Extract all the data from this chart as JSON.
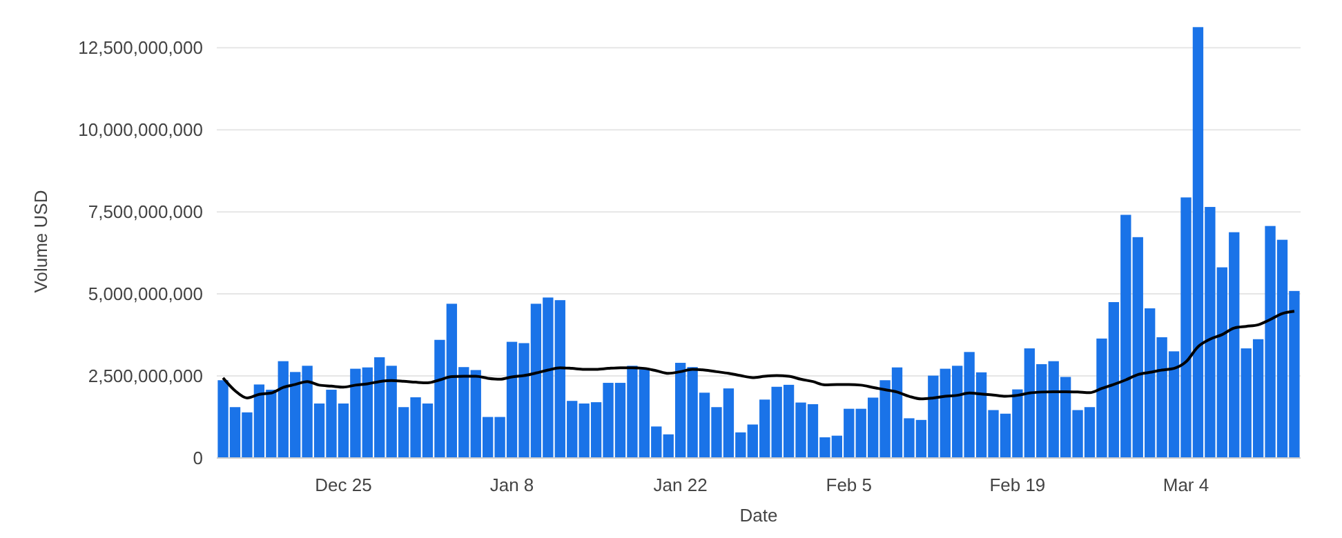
{
  "chart_data": {
    "type": "bar",
    "xlabel": "Date",
    "ylabel": "Volume USD",
    "categories": [
      null,
      null,
      null,
      null,
      null,
      null,
      null,
      null,
      null,
      null,
      "Dec 25",
      null,
      null,
      null,
      null,
      null,
      null,
      null,
      null,
      null,
      null,
      null,
      null,
      null,
      "Jan 8",
      null,
      null,
      null,
      null,
      null,
      null,
      null,
      null,
      null,
      null,
      null,
      null,
      null,
      "Jan 22",
      null,
      null,
      null,
      null,
      null,
      null,
      null,
      null,
      null,
      null,
      null,
      null,
      null,
      "Feb 5",
      null,
      null,
      null,
      null,
      null,
      null,
      null,
      null,
      null,
      null,
      null,
      null,
      null,
      "Feb 19",
      null,
      null,
      null,
      null,
      null,
      null,
      null,
      null,
      null,
      null,
      null,
      null,
      null,
      "Mar 4",
      null,
      null,
      null,
      null,
      null,
      null,
      null,
      null,
      null
    ],
    "series": [
      {
        "color": "#1a73e8",
        "values": [
          2370000000,
          1550000000,
          1390000000,
          2240000000,
          2080000000,
          2950000000,
          2620000000,
          2810000000,
          1660000000,
          2080000000,
          1660000000,
          2720000000,
          2760000000,
          3070000000,
          2810000000,
          1550000000,
          1850000000,
          1660000000,
          3600000000,
          4700000000,
          2770000000,
          2680000000,
          1250000000,
          1250000000,
          3540000000,
          3500000000,
          4700000000,
          4890000000,
          4810000000,
          1740000000,
          1660000000,
          1700000000,
          2290000000,
          2290000000,
          2810000000,
          2700000000,
          960000000,
          720000000,
          2900000000,
          2770000000,
          1990000000,
          1550000000,
          2120000000,
          780000000,
          1020000000,
          1780000000,
          2170000000,
          2230000000,
          1690000000,
          1640000000,
          630000000,
          680000000,
          1500000000,
          1500000000,
          1840000000,
          2370000000,
          2760000000,
          1210000000,
          1160000000,
          2510000000,
          2720000000,
          2810000000,
          3230000000,
          2610000000,
          1460000000,
          1350000000,
          2090000000,
          3340000000,
          2860000000,
          2950000000,
          2470000000,
          1460000000,
          1550000000,
          3640000000,
          4750000000,
          7410000000,
          6730000000,
          4560000000,
          3680000000,
          3250000000,
          7940000000,
          13130000000,
          7650000000,
          5810000000,
          6880000000,
          3340000000,
          3620000000,
          7070000000,
          6650000000,
          5090000000
        ]
      },
      {
        "type": "line",
        "color": "#000000",
        "values": [
          2440000000,
          2050000000,
          1830000000,
          1940000000,
          1980000000,
          2150000000,
          2240000000,
          2330000000,
          2220000000,
          2190000000,
          2160000000,
          2220000000,
          2260000000,
          2330000000,
          2360000000,
          2340000000,
          2310000000,
          2290000000,
          2380000000,
          2480000000,
          2490000000,
          2490000000,
          2430000000,
          2400000000,
          2470000000,
          2510000000,
          2590000000,
          2680000000,
          2750000000,
          2730000000,
          2700000000,
          2700000000,
          2730000000,
          2750000000,
          2750000000,
          2730000000,
          2660000000,
          2580000000,
          2630000000,
          2700000000,
          2680000000,
          2630000000,
          2580000000,
          2510000000,
          2450000000,
          2490000000,
          2510000000,
          2490000000,
          2400000000,
          2330000000,
          2230000000,
          2240000000,
          2240000000,
          2220000000,
          2150000000,
          2080000000,
          2010000000,
          1880000000,
          1800000000,
          1830000000,
          1880000000,
          1910000000,
          1980000000,
          1950000000,
          1920000000,
          1880000000,
          1910000000,
          1980000000,
          2010000000,
          2020000000,
          2020000000,
          2010000000,
          1990000000,
          2120000000,
          2240000000,
          2380000000,
          2540000000,
          2610000000,
          2680000000,
          2730000000,
          2930000000,
          3390000000,
          3620000000,
          3760000000,
          3960000000,
          4010000000,
          4060000000,
          4220000000,
          4400000000,
          4470000000
        ]
      }
    ],
    "ylim": [
      0,
      13200000000
    ],
    "yticks": [
      {
        "value": 0,
        "label": "0"
      },
      {
        "value": 2500000000,
        "label": "2,500,000,000"
      },
      {
        "value": 5000000000,
        "label": "5,000,000,000"
      },
      {
        "value": 7500000000,
        "label": "7,500,000,000"
      },
      {
        "value": 10000000000,
        "label": "10,000,000,000"
      },
      {
        "value": 12500000000,
        "label": "12,500,000,000"
      }
    ],
    "grid": "y"
  }
}
